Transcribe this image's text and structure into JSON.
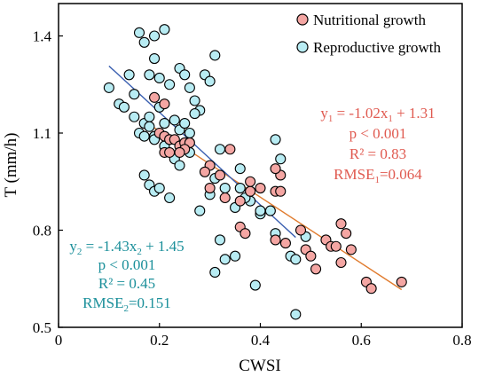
{
  "chart_data": {
    "type": "scatter",
    "xlabel": "CWSI",
    "ylabel": "T (mm/h)",
    "xlim": [
      0,
      0.8
    ],
    "ylim": [
      0.5,
      1.5
    ],
    "xticks": [
      0,
      0.2,
      0.4,
      0.6,
      0.8
    ],
    "yticks": [
      0.5,
      0.8,
      1.1,
      1.4
    ],
    "xtick_labels": [
      "0",
      "0.2",
      "0.4",
      "0.6",
      "0.8"
    ],
    "ytick_labels": [
      "0.5",
      "0.8",
      "1.1",
      "1.4"
    ],
    "grid": false,
    "legend_position": "top-right",
    "series": [
      {
        "name": "Nutritional growth",
        "color": "#f4a6a3",
        "points": [
          [
            0.19,
            1.21
          ],
          [
            0.21,
            1.19
          ],
          [
            0.2,
            1.1
          ],
          [
            0.21,
            1.09
          ],
          [
            0.22,
            1.08
          ],
          [
            0.23,
            1.08
          ],
          [
            0.21,
            1.04
          ],
          [
            0.22,
            1.04
          ],
          [
            0.24,
            1.06
          ],
          [
            0.25,
            1.07
          ],
          [
            0.26,
            1.07
          ],
          [
            0.25,
            1.05
          ],
          [
            0.24,
            1.04
          ],
          [
            0.3,
            1.0
          ],
          [
            0.32,
            0.97
          ],
          [
            0.29,
            0.98
          ],
          [
            0.34,
            1.05
          ],
          [
            0.3,
            0.93
          ],
          [
            0.33,
            0.9
          ],
          [
            0.36,
            0.89
          ],
          [
            0.38,
            0.92
          ],
          [
            0.4,
            0.93
          ],
          [
            0.43,
            0.92
          ],
          [
            0.44,
            0.92
          ],
          [
            0.44,
            0.97
          ],
          [
            0.43,
            0.99
          ],
          [
            0.38,
            0.95
          ],
          [
            0.36,
            0.81
          ],
          [
            0.37,
            0.79
          ],
          [
            0.43,
            0.77
          ],
          [
            0.45,
            0.76
          ],
          [
            0.48,
            0.8
          ],
          [
            0.49,
            0.74
          ],
          [
            0.5,
            0.72
          ],
          [
            0.51,
            0.68
          ],
          [
            0.53,
            0.77
          ],
          [
            0.54,
            0.75
          ],
          [
            0.55,
            0.75
          ],
          [
            0.56,
            0.82
          ],
          [
            0.57,
            0.79
          ],
          [
            0.58,
            0.74
          ],
          [
            0.56,
            0.7
          ],
          [
            0.61,
            0.64
          ],
          [
            0.62,
            0.62
          ],
          [
            0.68,
            0.64
          ]
        ]
      },
      {
        "name": "Reproductive growth",
        "color": "#b8ecf3",
        "points": [
          [
            0.1,
            1.24
          ],
          [
            0.12,
            1.19
          ],
          [
            0.13,
            1.18
          ],
          [
            0.14,
            1.28
          ],
          [
            0.15,
            1.22
          ],
          [
            0.16,
            1.41
          ],
          [
            0.17,
            1.38
          ],
          [
            0.19,
            1.4
          ],
          [
            0.21,
            1.42
          ],
          [
            0.19,
            1.33
          ],
          [
            0.18,
            1.28
          ],
          [
            0.2,
            1.27
          ],
          [
            0.22,
            1.25
          ],
          [
            0.24,
            1.3
          ],
          [
            0.25,
            1.28
          ],
          [
            0.26,
            1.24
          ],
          [
            0.27,
            1.2
          ],
          [
            0.28,
            1.17
          ],
          [
            0.27,
            1.16
          ],
          [
            0.29,
            1.28
          ],
          [
            0.3,
            1.26
          ],
          [
            0.31,
            1.34
          ],
          [
            0.15,
            1.15
          ],
          [
            0.16,
            1.1
          ],
          [
            0.17,
            1.13
          ],
          [
            0.18,
            1.15
          ],
          [
            0.19,
            1.09
          ],
          [
            0.2,
            1.18
          ],
          [
            0.21,
            1.13
          ],
          [
            0.23,
            1.14
          ],
          [
            0.24,
            1.11
          ],
          [
            0.25,
            1.13
          ],
          [
            0.26,
            1.1
          ],
          [
            0.17,
            1.09
          ],
          [
            0.18,
            1.12
          ],
          [
            0.19,
            1.08
          ],
          [
            0.21,
            1.06
          ],
          [
            0.23,
            1.02
          ],
          [
            0.24,
            1.0
          ],
          [
            0.26,
            1.04
          ],
          [
            0.17,
            0.97
          ],
          [
            0.18,
            0.94
          ],
          [
            0.19,
            0.92
          ],
          [
            0.2,
            0.93
          ],
          [
            0.22,
            0.9
          ],
          [
            0.28,
            0.86
          ],
          [
            0.3,
            0.91
          ],
          [
            0.31,
            0.96
          ],
          [
            0.33,
            0.93
          ],
          [
            0.32,
            1.05
          ],
          [
            0.35,
            0.87
          ],
          [
            0.36,
            0.93
          ],
          [
            0.38,
            0.89
          ],
          [
            0.4,
            0.85
          ],
          [
            0.42,
            0.86
          ],
          [
            0.44,
            1.02
          ],
          [
            0.43,
            1.08
          ],
          [
            0.32,
            0.77
          ],
          [
            0.33,
            0.71
          ],
          [
            0.35,
            0.72
          ],
          [
            0.31,
            0.67
          ],
          [
            0.39,
            0.63
          ],
          [
            0.43,
            0.79
          ],
          [
            0.46,
            0.72
          ],
          [
            0.47,
            0.71
          ],
          [
            0.49,
            0.78
          ],
          [
            0.47,
            0.54
          ],
          [
            0.4,
            0.86
          ],
          [
            0.36,
            0.99
          ],
          [
            0.37,
            0.9
          ]
        ]
      }
    ],
    "fit_lines": [
      {
        "series": "Nutritional growth",
        "color": "#e07b2e",
        "x_start": 0.19,
        "x_end": 0.68,
        "slope": -1.02,
        "intercept": 1.31
      },
      {
        "series": "Reproductive growth",
        "color": "#3a5fb0",
        "x_start": 0.1,
        "x_end": 0.47,
        "slope": -1.43,
        "intercept": 1.45
      }
    ]
  },
  "annotations": {
    "nutritional": {
      "color": "#e05a50",
      "eq_y": "y",
      "eq_sub": "1",
      "eq_mid": " = -1.02x",
      "eq_sub2": "1",
      "eq_end": " + 1.31",
      "p": "p < 0.001",
      "r2": "R² = 0.83",
      "rmse": "RMSE",
      "rmse_sub": "1",
      "rmse_val": "=0.064"
    },
    "reproductive": {
      "color": "#1a8f9a",
      "eq_y": "y",
      "eq_sub": "2",
      "eq_mid": " = -1.43x",
      "eq_sub2": "2",
      "eq_end": " + 1.45",
      "p": "p < 0.001",
      "r2": "R² = 0.45",
      "rmse": "RMSE",
      "rmse_sub": "2",
      "rmse_val": "=0.151"
    }
  }
}
